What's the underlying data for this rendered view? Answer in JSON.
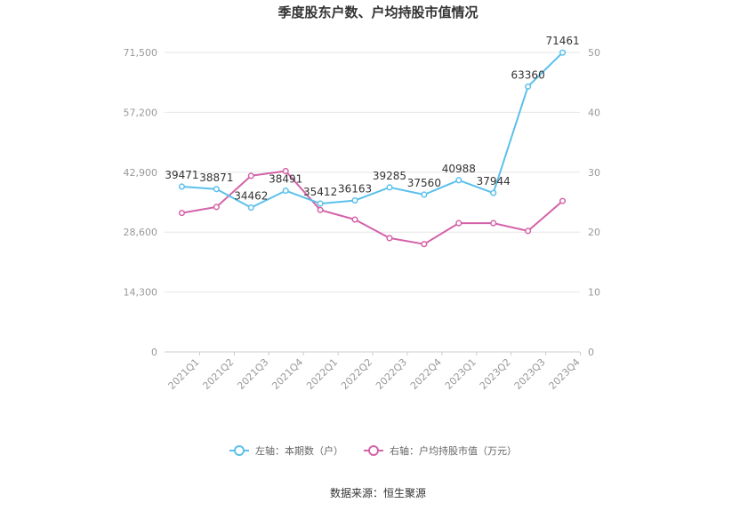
{
  "chart_data": {
    "type": "line",
    "title": "季度股东户数、户均持股市值情况",
    "categories": [
      "2021Q1",
      "2021Q2",
      "2021Q3",
      "2021Q4",
      "2022Q1",
      "2022Q2",
      "2022Q3",
      "2022Q4",
      "2023Q1",
      "2023Q2",
      "2023Q3",
      "2023Q4"
    ],
    "left_axis": {
      "ylim": [
        0,
        71500
      ],
      "ticks": [
        "0",
        "14,300",
        "28,600",
        "42,900",
        "57,200",
        "71,500"
      ],
      "tick_values": [
        0,
        14300,
        28600,
        42900,
        57200,
        71500
      ]
    },
    "right_axis": {
      "ylim": [
        0,
        50
      ],
      "ticks": [
        "0",
        "10",
        "20",
        "30",
        "40",
        "50"
      ],
      "tick_values": [
        0,
        10,
        20,
        30,
        40,
        50
      ]
    },
    "series": [
      {
        "name": "左轴：本期数（户）",
        "axis": "left",
        "color": "#5bc0eb",
        "values": [
          39471,
          38871,
          34462,
          38491,
          35412,
          36163,
          39285,
          37560,
          40988,
          37944,
          63360,
          71461
        ],
        "labels": [
          "39471",
          "38871",
          "34462",
          "38491",
          "35412",
          "36163",
          "39285",
          "37560",
          "40988",
          "37944",
          "63360",
          "71461"
        ]
      },
      {
        "name": "右轴：户均持股市值（万元）",
        "axis": "right",
        "color": "#d462a8",
        "values": [
          23.2,
          24.2,
          29.4,
          30.2,
          23.7,
          22.1,
          19.0,
          18.0,
          21.5,
          21.5,
          20.2,
          25.2
        ]
      }
    ],
    "grid": true,
    "legend_position": "bottom"
  },
  "source": "数据来源：恒生聚源"
}
